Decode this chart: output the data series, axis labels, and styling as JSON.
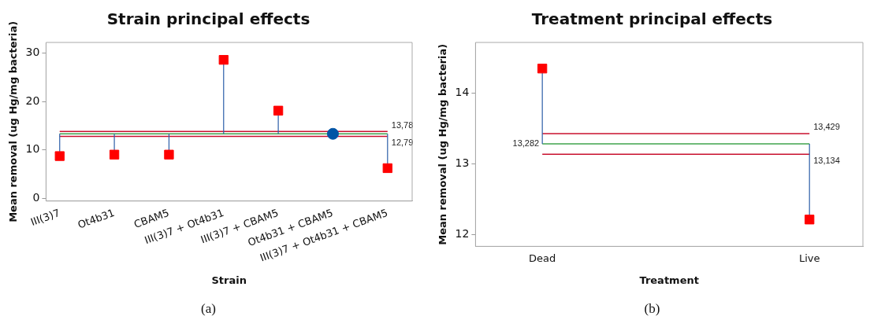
{
  "chart_data": [
    {
      "type": "scatter",
      "title": "Strain principal effects",
      "xlabel": "Strain",
      "ylabel": "Mean removal (ug Hg/mg bacteria)",
      "categories": [
        "III(3)7",
        "Ot4b31",
        "CBAM5",
        "III(3)7 + Ot4b31",
        "III(3)7 + CBAM5",
        "Ot4b31 + CBAM5",
        "III(3)7 + Ot4b31 + CBAM5"
      ],
      "series": [
        {
          "color": "#ff0000",
          "marker": "square",
          "values": [
            8.7,
            9.0,
            9.0,
            28.6,
            18.1,
            null,
            6.2
          ],
          "errors": [
            [
              8.7,
              13.3
            ],
            [
              9.0,
              13.3
            ],
            [
              9.0,
              13.3
            ],
            [
              13.3,
              28.6
            ],
            [
              13.3,
              18.1
            ],
            null,
            [
              6.2,
              13.3
            ]
          ]
        },
        {
          "color": "#0054a6",
          "marker": "circle",
          "values": [
            null,
            null,
            null,
            null,
            null,
            13.3,
            null
          ]
        }
      ],
      "ylim": [
        -0.6,
        32.2
      ],
      "yticks": [
        0,
        10,
        20,
        30
      ],
      "grid": false,
      "legend": false,
      "ref_lines": [
        {
          "axis": "y",
          "value": 13.3,
          "color": "#3fa34d"
        },
        {
          "axis": "y",
          "value": 13.78,
          "label": "13,78",
          "color": "#c8102e"
        },
        {
          "axis": "y",
          "value": 12.79,
          "label": "12,79",
          "color": "#c8102e"
        }
      ],
      "annotations": [
        "(a)"
      ]
    },
    {
      "type": "scatter",
      "title": "Treatment principal effects",
      "xlabel": "Treatment",
      "ylabel": "Mean removal (ug Hg/mg bacteria)",
      "categories": [
        "Dead",
        "Live"
      ],
      "series": [
        {
          "color": "#ff0000",
          "marker": "square",
          "values": [
            14.35,
            12.21
          ],
          "errors": [
            [
              13.282,
              14.35
            ],
            [
              12.21,
              13.282
            ]
          ]
        }
      ],
      "ylim": [
        11.83,
        14.72
      ],
      "yticks": [
        12,
        13,
        14
      ],
      "grid": false,
      "legend": false,
      "ref_lines": [
        {
          "axis": "y",
          "value": 13.282,
          "label": "13,282",
          "color": "#3fa34d"
        },
        {
          "axis": "y",
          "value": 13.429,
          "label": "13,429",
          "color": "#c8102e"
        },
        {
          "axis": "y",
          "value": 13.134,
          "label": "13,134",
          "color": "#c8102e"
        }
      ],
      "annotations": [
        "(b)"
      ]
    }
  ]
}
